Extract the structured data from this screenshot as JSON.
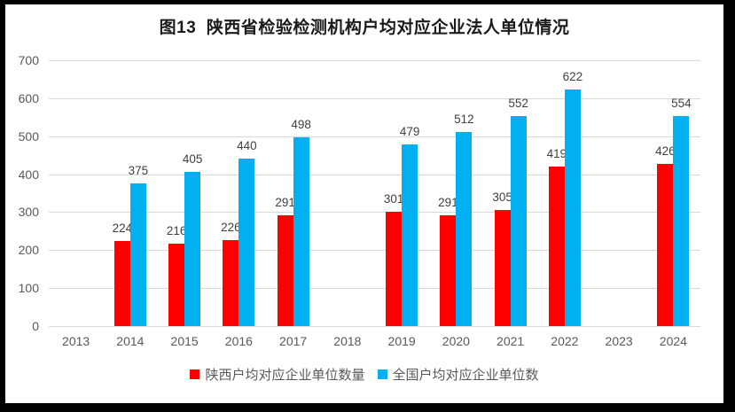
{
  "title": "图13  陕西省检验检测机构户均对应企业法人单位情况",
  "chart_data": {
    "type": "bar",
    "title": "图13  陕西省检验检测机构户均对应企业法人单位情况",
    "categories": [
      "2013",
      "2014",
      "2015",
      "2016",
      "2017",
      "2018",
      "2019",
      "2020",
      "2021",
      "2022",
      "2023",
      "2024"
    ],
    "series": [
      {
        "name": "陕西户均对应企业单位数量",
        "color": "#ff0000",
        "values": [
          null,
          224,
          216,
          226,
          291,
          null,
          301,
          291,
          305,
          419,
          null,
          426
        ]
      },
      {
        "name": "全国户均对应企业单位数",
        "color": "#00b0f0",
        "values": [
          null,
          375,
          405,
          440,
          498,
          null,
          479,
          512,
          552,
          622,
          null,
          554
        ]
      }
    ],
    "xlabel": "",
    "ylabel": "",
    "ylim": [
      0,
      700
    ],
    "yticks": [
      0,
      100,
      200,
      300,
      400,
      500,
      600,
      700
    ],
    "grid": true,
    "data_labels": true,
    "legend_position": "bottom"
  },
  "colors": {
    "frame": "#000000",
    "background": "#ffffff",
    "gridline": "#d9d9d9",
    "axis_text": "#595959",
    "data_label_text": "#404040",
    "title_text": "#1a1a1a"
  }
}
